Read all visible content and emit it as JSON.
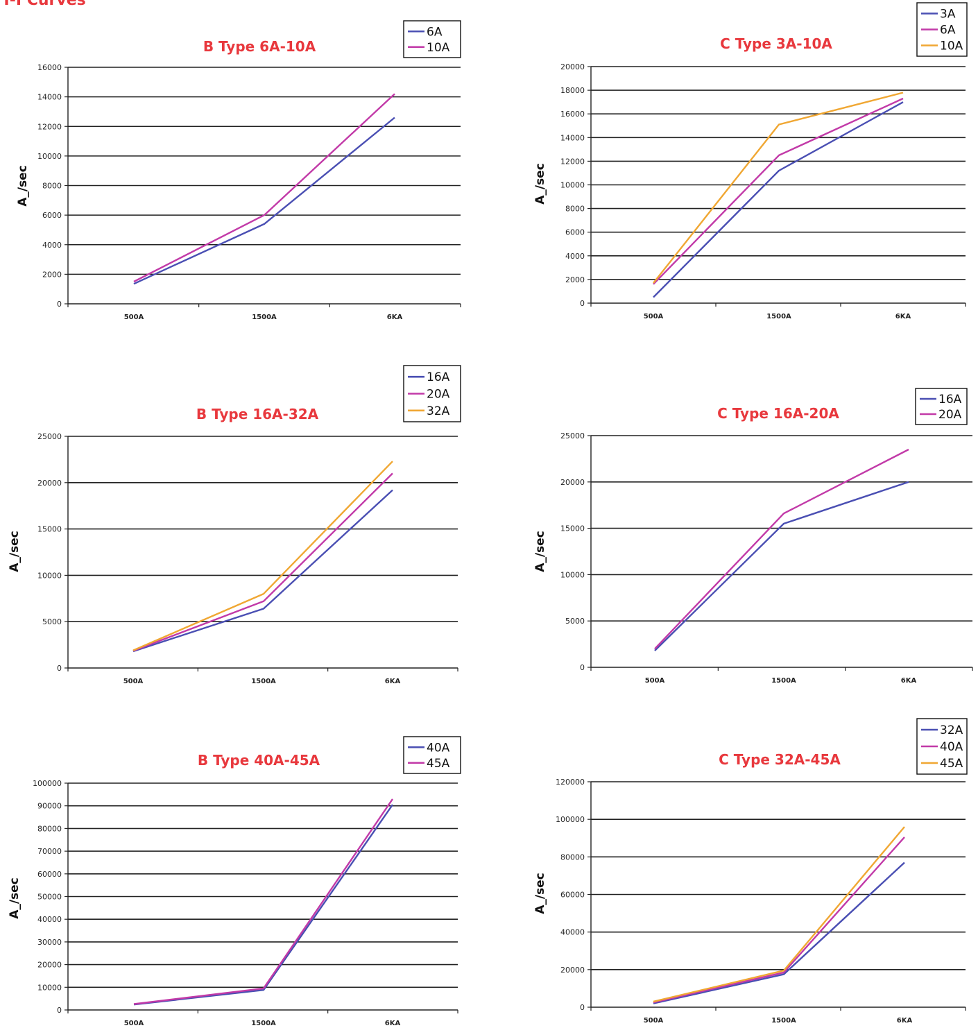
{
  "page": {
    "title": "T-I Curves"
  },
  "colors": {
    "title": "#e8383d",
    "blue": "#4a4fb3",
    "magenta": "#c23aa8",
    "orange": "#f0a733",
    "grid": "#222222"
  },
  "chart_data": [
    {
      "type": "line",
      "title": "B Type 6A-10A",
      "ylabel": "A_/sec",
      "categories": [
        "500A",
        "1500A",
        "6KA"
      ],
      "ylim": [
        0,
        16000
      ],
      "yticks": [
        0,
        2000,
        4000,
        6000,
        8000,
        10000,
        12000,
        14000,
        16000
      ],
      "series": [
        {
          "name": "6A",
          "color": "#4a4fb3",
          "values": [
            1350,
            5400,
            12600
          ]
        },
        {
          "name": "10A",
          "color": "#c23aa8",
          "values": [
            1500,
            6000,
            14200
          ]
        }
      ]
    },
    {
      "type": "line",
      "title": "C Type 3A-10A",
      "ylabel": "A_/sec",
      "categories": [
        "500A",
        "1500A",
        "6KA"
      ],
      "ylim": [
        0,
        20000
      ],
      "yticks": [
        0,
        2000,
        4000,
        6000,
        8000,
        10000,
        12000,
        14000,
        16000,
        18000,
        20000
      ],
      "series": [
        {
          "name": "3A",
          "color": "#4a4fb3",
          "values": [
            500,
            11200,
            17000
          ]
        },
        {
          "name": "6A",
          "color": "#c23aa8",
          "values": [
            1600,
            12500,
            17300
          ]
        },
        {
          "name": "10A",
          "color": "#f0a733",
          "values": [
            1700,
            15100,
            17800
          ]
        }
      ]
    },
    {
      "type": "line",
      "title": "B Type 16A-32A",
      "ylabel": "A_/sec",
      "categories": [
        "500A",
        "1500A",
        "6KA"
      ],
      "ylim": [
        0,
        25000
      ],
      "yticks": [
        0,
        5000,
        10000,
        15000,
        20000,
        25000
      ],
      "series": [
        {
          "name": "16A",
          "color": "#4a4fb3",
          "values": [
            1800,
            6400,
            19200
          ]
        },
        {
          "name": "20A",
          "color": "#c23aa8",
          "values": [
            1850,
            7200,
            21000
          ]
        },
        {
          "name": "32A",
          "color": "#f0a733",
          "values": [
            1900,
            8000,
            22300
          ]
        }
      ]
    },
    {
      "type": "line",
      "title": "C Type 16A-20A",
      "ylabel": "A_/sec",
      "categories": [
        "500A",
        "1500A",
        "6KA"
      ],
      "ylim": [
        0,
        25000
      ],
      "yticks": [
        0,
        5000,
        10000,
        15000,
        20000,
        25000
      ],
      "series": [
        {
          "name": "16A",
          "color": "#4a4fb3",
          "values": [
            1800,
            15500,
            20000
          ]
        },
        {
          "name": "20A",
          "color": "#c23aa8",
          "values": [
            2000,
            16600,
            23500
          ]
        }
      ]
    },
    {
      "type": "line",
      "title": "B Type 40A-45A",
      "ylabel": "A_/sec",
      "categories": [
        "500A",
        "1500A",
        "6KA"
      ],
      "ylim": [
        0,
        100000
      ],
      "yticks": [
        0,
        10000,
        20000,
        30000,
        40000,
        50000,
        60000,
        70000,
        80000,
        90000,
        100000
      ],
      "series": [
        {
          "name": "40A",
          "color": "#4a4fb3",
          "values": [
            2400,
            8800,
            90500
          ]
        },
        {
          "name": "45A",
          "color": "#c23aa8",
          "values": [
            2600,
            9500,
            93000
          ]
        }
      ]
    },
    {
      "type": "line",
      "title": "C Type 32A-45A",
      "ylabel": "A_/sec",
      "categories": [
        "500A",
        "1500A",
        "6KA"
      ],
      "ylim": [
        0,
        120000
      ],
      "yticks": [
        0,
        20000,
        40000,
        60000,
        80000,
        100000,
        120000
      ],
      "series": [
        {
          "name": "32A",
          "color": "#4a4fb3",
          "values": [
            2000,
            17500,
            77000
          ]
        },
        {
          "name": "40A",
          "color": "#c23aa8",
          "values": [
            2500,
            18500,
            90500
          ]
        },
        {
          "name": "45A",
          "color": "#f0a733",
          "values": [
            3000,
            19500,
            96000
          ]
        }
      ]
    }
  ]
}
